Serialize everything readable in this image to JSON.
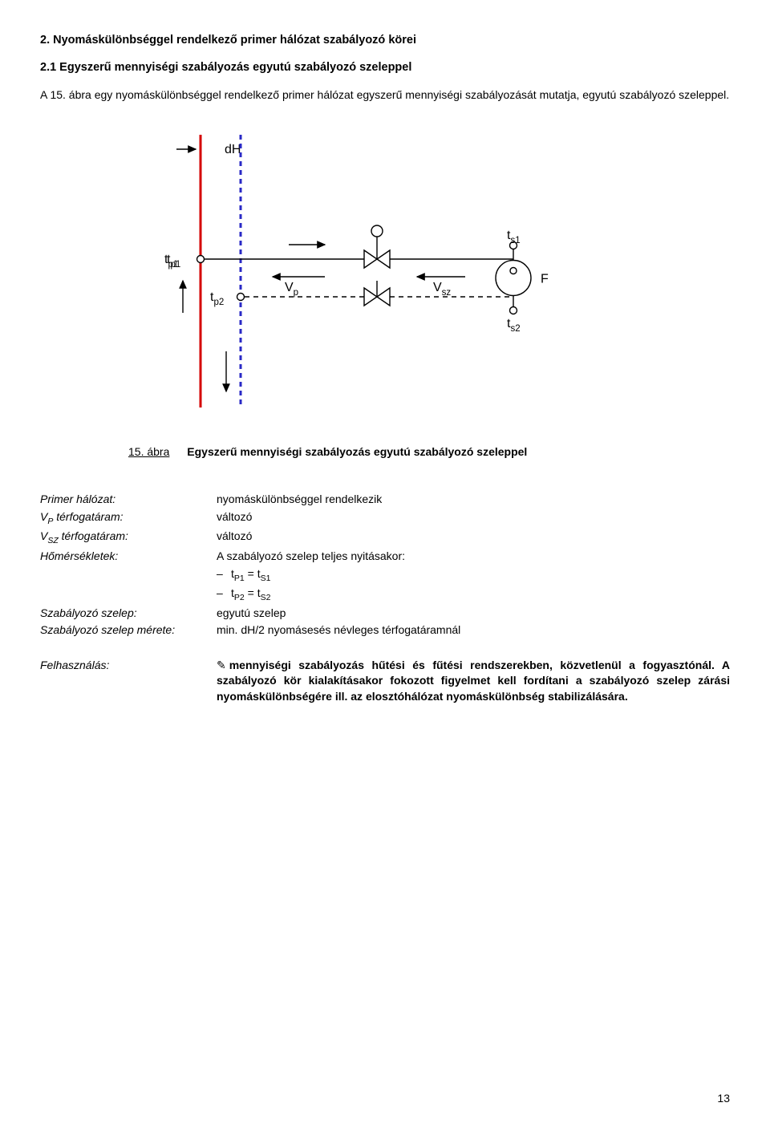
{
  "headings": {
    "h1": "2. Nyomáskülönbséggel rendelkező primer hálózat szabályozó körei",
    "h2": "2.1 Egyszerű mennyiségi szabályozás egyutú szabályozó szeleppel"
  },
  "intro": "A 15. ábra egy nyomáskülönbséggel rendelkező primer hálózat egyszerű mennyiségi szabályozását mutatja, egyutú szabályozó szeleppel.",
  "caption": {
    "num": "15. ábra",
    "text": "Egyszerű mennyiségi szabályozás egyutú szabályozó szeleppel"
  },
  "info": {
    "rows": [
      {
        "label": "Primer hálózat:",
        "value": "nyomáskülönbséggel rendelkezik"
      },
      {
        "label": "V_P térfogatáram:",
        "value": "változó"
      },
      {
        "label": "V_SZ térfogatáram:",
        "value": "változó"
      },
      {
        "label": "Hőmérsékletek:",
        "value": "A szabályozó szelep teljes nyitásakor:"
      }
    ],
    "indent": [
      "t_P1 = t_S1",
      "t_P2 = t_S2"
    ],
    "rows2": [
      {
        "label": "Szabályozó szelep:",
        "value": "egyutú szelep"
      },
      {
        "label": "Szabályozó szelep mérete:",
        "value": "min. dH/2 nyomásesés névleges térfogatáramnál"
      }
    ]
  },
  "usage": {
    "label": "Felhasználás:",
    "text": "mennyiségi szabályozás hűtési és fűtési rendszerekben, közvetlenül a fogyasztónál. A szabályozó kör kialakításakor fokozott figyelmet kell fordítani a szabályozó szelep zárási nyomáskülönbségére ill. az elosztóhálózat nyomáskülönbség stabilizálására."
  },
  "diagram": {
    "type": "flowchart",
    "labels": {
      "dH": "dH",
      "tp1": "t_p1",
      "tp2": "t_p2",
      "Vp": "V_p",
      "Vsz": "V_sz",
      "ts1": "t_s1",
      "ts2": "t_s2",
      "F": "F"
    },
    "colors": {
      "hot_line": "#d40000",
      "return_line": "#2929c6",
      "stroke": "#000000",
      "bg": "#ffffff"
    },
    "strokes": {
      "pipe_width": 3,
      "thin": 1.4,
      "dash": "6,5"
    },
    "font": {
      "family": "Arial",
      "label_size": 16
    }
  },
  "pagenum": "13"
}
